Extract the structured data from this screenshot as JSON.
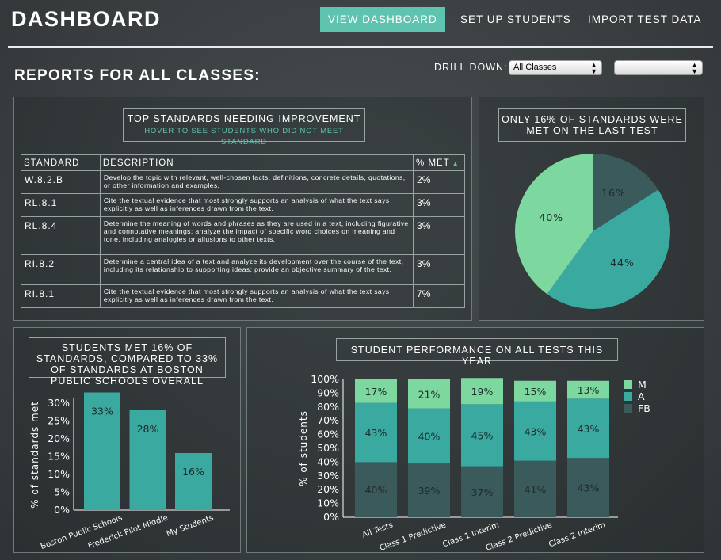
{
  "header": {
    "title": "DASHBOARD",
    "nav": [
      "VIEW DASHBOARD",
      "SET UP STUDENTS",
      "IMPORT TEST DATA"
    ]
  },
  "reports_title": "REPORTS FOR ALL CLASSES:",
  "drill_down": {
    "label": "DRILL DOWN:",
    "selected": "All Classes",
    "second_selected": ""
  },
  "standards_panel": {
    "title": "TOP STANDARDS NEEDING IMPROVEMENT",
    "subtitle": "HOVER TO SEE STUDENTS WHO DID NOT MEET STANDARD",
    "columns": [
      "STANDARD",
      "DESCRIPTION",
      "% MET"
    ],
    "rows": [
      {
        "standard": "W.8.2.B",
        "description": "Develop the topic with relevant, well-chosen facts, definitions, concrete details, quotations, or other information and examples.",
        "pct": "2%"
      },
      {
        "standard": "RL.8.1",
        "description": "Cite the textual evidence that most strongly supports an analysis of what the text says explicitly as well as inferences drawn from the text.",
        "pct": "3%"
      },
      {
        "standard": "RL.8.4",
        "description": "Determine the meaning of words and phrases as they are used in a text, including figurative and connotative meanings; analyze the impact of specific word choices on meaning and tone, including analogies or allusions to other texts.",
        "pct": "3%"
      },
      {
        "standard": "RI.8.2",
        "description": "Determine a central idea of a text and analyze its development over the course of the text, including its relationship to supporting ideas; provide an objective summary of the text.",
        "pct": "3%"
      },
      {
        "standard": "RI.8.1",
        "description": "Cite the textual evidence that most strongly supports an analysis of what the text says explicitly as well as inferences drawn from the text.",
        "pct": "7%"
      }
    ]
  },
  "pie_panel": {
    "title": "ONLY 16% OF STANDARDS WERE MET ON THE LAST TEST"
  },
  "bar_panel": {
    "title": "STUDENTS MET 16% OF STANDARDS, COMPARED TO 33% OF STANDARDS AT BOSTON PUBLIC SCHOOLS OVERALL"
  },
  "stack_panel": {
    "title": "STUDENT PERFORMANCE ON ALL TESTS THIS YEAR"
  },
  "colors": {
    "teal": "#3aa99f",
    "light_green": "#7dd8a0",
    "dark_slate": "#3b5a5c",
    "accent": "#5ec4b0"
  },
  "chart_data": [
    {
      "type": "pie",
      "slices": [
        {
          "label": "16%",
          "value": 16,
          "color": "#3b5a5c"
        },
        {
          "label": "44%",
          "value": 44,
          "color": "#3aa99f"
        },
        {
          "label": "40%",
          "value": 40,
          "color": "#7dd8a0"
        }
      ]
    },
    {
      "type": "bar",
      "categories": [
        "Boston Public Schools",
        "Frederick Pilot Middle",
        "My Students"
      ],
      "values": [
        33,
        28,
        16
      ],
      "value_labels": [
        "33%",
        "28%",
        "16%"
      ],
      "ylabel": "% of standards met",
      "ylim": [
        0,
        30
      ],
      "yticks": [
        "0%",
        "5%",
        "10%",
        "15%",
        "20%",
        "25%",
        "30%"
      ],
      "color": "#3aa99f"
    },
    {
      "type": "bar",
      "stacked": true,
      "categories": [
        "All Tests",
        "Class 1 Predictive",
        "Class 1 Interim",
        "Class 2 Predictive",
        "Class 2 Interim"
      ],
      "series": [
        {
          "name": "FB",
          "values": [
            40,
            39,
            37,
            41,
            43
          ],
          "color": "#3b5a5c"
        },
        {
          "name": "A",
          "values": [
            43,
            40,
            45,
            43,
            43
          ],
          "color": "#3aa99f"
        },
        {
          "name": "M",
          "values": [
            17,
            21,
            19,
            15,
            13
          ],
          "color": "#7dd8a0"
        }
      ],
      "legend_order": [
        "M",
        "A",
        "FB"
      ],
      "ylabel": "% of students",
      "ylim": [
        0,
        100
      ],
      "yticks": [
        "0%",
        "10%",
        "20%",
        "30%",
        "40%",
        "50%",
        "60%",
        "70%",
        "80%",
        "90%",
        "100%"
      ],
      "legend": "right"
    }
  ]
}
